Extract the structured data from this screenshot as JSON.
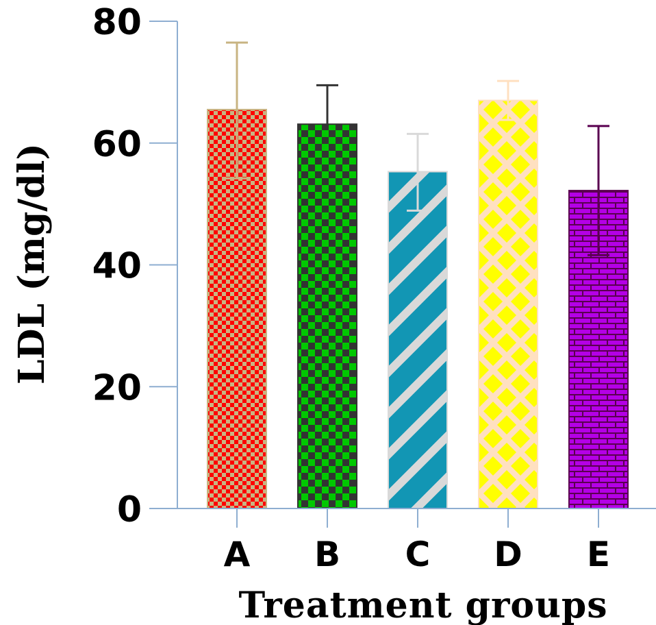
{
  "chart_data": {
    "type": "bar",
    "title": "",
    "xlabel": "Treatment groups",
    "ylabel": "LDL (mg/dl)",
    "ylim": [
      0,
      80
    ],
    "yticks": [
      0,
      20,
      40,
      60,
      80
    ],
    "categories": [
      "A",
      "B",
      "C",
      "D",
      "E"
    ],
    "values": [
      65.5,
      63.1,
      55.3,
      67.0,
      52.2
    ],
    "error_upper": [
      76.5,
      69.5,
      61.5,
      70.2,
      62.8
    ],
    "error_lower": [
      54.2,
      null,
      48.9,
      63.8,
      41.6
    ],
    "grid": false,
    "legend": "none",
    "bar_styles": [
      {
        "pattern": "checker-small",
        "fg": "#ff0000",
        "bg": "#c8b482",
        "border": "#c8b482",
        "error_color": "#c8b482"
      },
      {
        "pattern": "checker-large",
        "fg": "#00c800",
        "bg": "#333333",
        "border": "#333333",
        "error_color": "#333333"
      },
      {
        "pattern": "diagonal-stripes",
        "fg": "#d9d9d9",
        "bg": "#1296b4",
        "border": "#d9d9d9",
        "error_color": "#d9d9d9"
      },
      {
        "pattern": "diamonds",
        "fg": "#ffff00",
        "bg": "#ffe0c0",
        "border": "#ffe0c0",
        "error_color": "#ffe0c0"
      },
      {
        "pattern": "bricks",
        "fg": "#b400e6",
        "bg": "#5a0050",
        "border": "#5a0050",
        "error_color": "#5a0050"
      }
    ],
    "axis_color": "#8eaed1"
  }
}
